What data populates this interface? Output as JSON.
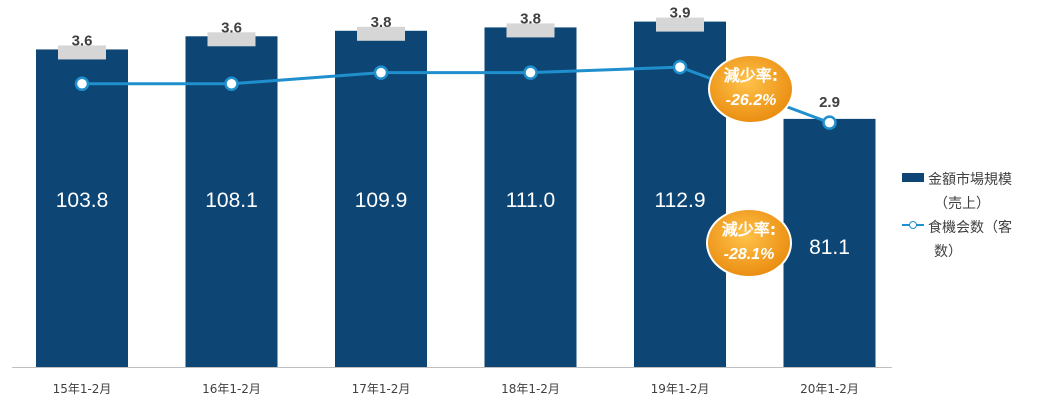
{
  "chart_data": {
    "type": "bar",
    "categories": [
      "15年1-2月",
      "16年1-2月",
      "17年1-2月",
      "18年1-2月",
      "19年1-2月",
      "20年1-2月"
    ],
    "series": [
      {
        "name": "金額市場規模（売上）",
        "kind": "bar",
        "axis": "left",
        "color": "#0d4674",
        "values": [
          103.8,
          108.1,
          109.9,
          111.0,
          112.9,
          81.1
        ],
        "labels": [
          "103.8",
          "108.1",
          "109.9",
          "111.0",
          "112.9",
          "81.1"
        ]
      },
      {
        "name": "食機会数（客数）",
        "kind": "line",
        "axis": "right",
        "color": "#1f8fce",
        "values": [
          3.6,
          3.6,
          3.8,
          3.8,
          3.9,
          2.9
        ],
        "labels": [
          "3.6",
          "3.6",
          "3.8",
          "3.8",
          "3.9",
          "2.9"
        ]
      }
    ],
    "ylim_left": [
      0,
      118
    ],
    "ylim_right": [
      -1.5,
      5.0
    ],
    "legend_position": "right",
    "grid": false,
    "annotations": [
      {
        "title": "減少率",
        "value": "-26.2%",
        "target": "食機会数（客数）",
        "color": "#f39c12"
      },
      {
        "title": "減少率",
        "value": "-28.1%",
        "target": "金額市場規模（売上）",
        "color": "#f39c12"
      }
    ]
  },
  "legend": {
    "bar_label_line1": "金額市場規模",
    "bar_label_line2": "（売上）",
    "line_label_line1": "食機会数（客",
    "line_label_line2": "数）"
  }
}
